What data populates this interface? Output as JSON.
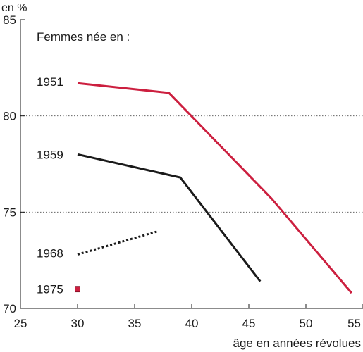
{
  "chart_data": {
    "type": "line",
    "ylabel": "en %",
    "xlabel": "âge en années révolues",
    "legend_title": "Femmes née en :",
    "xlim": [
      25,
      55
    ],
    "ylim": [
      70,
      85
    ],
    "x_ticks": [
      "25",
      "30",
      "35",
      "40",
      "45",
      "50",
      "55"
    ],
    "y_ticks": [
      "70",
      "75",
      "80",
      "85"
    ],
    "grid": "horizontal dotted at 75 and 80",
    "series": [
      {
        "name": "1951",
        "color": "#cc1f3f",
        "style": "solid",
        "x": [
          30,
          38,
          47,
          54
        ],
        "y": [
          81.7,
          81.2,
          75.7,
          70.8
        ]
      },
      {
        "name": "1959",
        "color": "#1a1a1a",
        "style": "solid",
        "x": [
          30,
          39,
          46
        ],
        "y": [
          78.0,
          76.8,
          71.4
        ]
      },
      {
        "name": "1968",
        "color": "#1a1a1a",
        "style": "dotted",
        "x": [
          30,
          37
        ],
        "y": [
          72.8,
          74.0
        ]
      },
      {
        "name": "1975",
        "color": "#cc1f3f",
        "style": "marker",
        "x": [
          30
        ],
        "y": [
          71.0
        ]
      }
    ]
  }
}
